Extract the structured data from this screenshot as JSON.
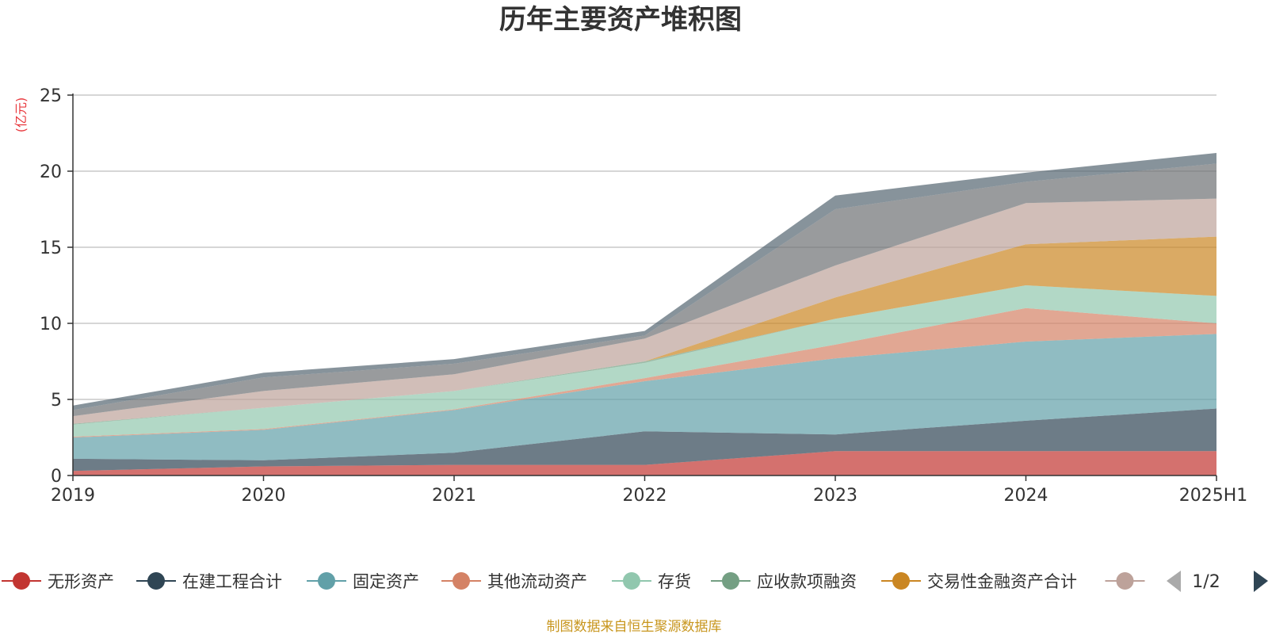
{
  "chart_data": {
    "type": "area",
    "stacked": true,
    "title": "历年主要资产堆积图",
    "ylabel": "(亿元)",
    "xlabel": "",
    "categories": [
      "2019",
      "2020",
      "2021",
      "2022",
      "2023",
      "2024",
      "2025H1"
    ],
    "ylim": [
      0,
      25
    ],
    "yticks": [
      0,
      5,
      10,
      15,
      20,
      25
    ],
    "grid": true,
    "legend_position": "bottom",
    "series": [
      {
        "name": "无形资产",
        "color": "#c23531",
        "values": [
          0.3,
          0.6,
          0.7,
          0.7,
          1.6,
          1.6,
          1.6
        ]
      },
      {
        "name": "在建工程合计",
        "color": "#2f4554",
        "values": [
          0.8,
          0.4,
          0.8,
          2.2,
          1.1,
          2.0,
          2.8
        ]
      },
      {
        "name": "固定资产",
        "color": "#61a0a8",
        "values": [
          1.4,
          2.0,
          2.8,
          3.3,
          5.0,
          5.2,
          4.9
        ]
      },
      {
        "name": "其他流动资产",
        "color": "#d48265",
        "values": [
          0.05,
          0.05,
          0.05,
          0.2,
          0.9,
          2.2,
          0.7
        ]
      },
      {
        "name": "存货",
        "color": "#91c7ae",
        "values": [
          0.8,
          1.4,
          1.2,
          1.0,
          1.7,
          1.5,
          1.8
        ]
      },
      {
        "name": "应收款项融资",
        "color": "#749f83",
        "values": [
          0.05,
          0.0,
          0.0,
          0.1,
          0.0,
          0.0,
          0.0
        ]
      },
      {
        "name": "交易性金融资产合计",
        "color": "#ca8622",
        "values": [
          0.0,
          0.0,
          0.0,
          0.0,
          1.4,
          2.7,
          3.9
        ]
      },
      {
        "name": "",
        "color": "#bda29a",
        "values": [
          0.5,
          1.1,
          1.1,
          1.5,
          2.1,
          2.7,
          2.5
        ]
      },
      {
        "name": "",
        "color": "#6e7074",
        "values": [
          0.4,
          0.9,
          0.7,
          0.2,
          3.7,
          1.4,
          2.3
        ]
      },
      {
        "name": "",
        "color": "#546570",
        "values": [
          0.3,
          0.3,
          0.3,
          0.3,
          0.9,
          0.6,
          0.7
        ]
      }
    ]
  },
  "legend": {
    "visible_count": 8,
    "pager_text": "1/2"
  },
  "source_note": "制图数据来自恒生聚源数据库"
}
